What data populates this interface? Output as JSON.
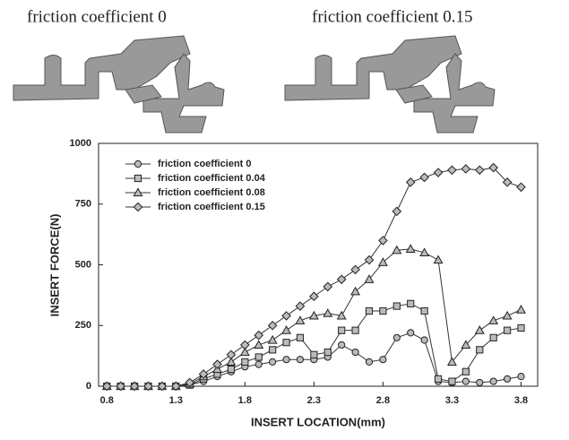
{
  "captions": [
    "friction  coefficient 0",
    "friction coefficient 0.15"
  ],
  "chart_data": {
    "type": "line",
    "x_label": "INSERT LOCATION(mm)",
    "y_label": "INSERT FORCE(N)",
    "x": [
      0.8,
      0.9,
      1.0,
      1.1,
      1.2,
      1.3,
      1.4,
      1.5,
      1.6,
      1.7,
      1.8,
      1.9,
      2.0,
      2.1,
      2.2,
      2.3,
      2.4,
      2.5,
      2.6,
      2.7,
      2.8,
      2.9,
      3.0,
      3.1,
      3.2,
      3.3,
      3.4,
      3.5,
      3.6,
      3.7,
      3.8
    ],
    "xlim": [
      0.74,
      3.92
    ],
    "xticks": [
      0.8,
      1.3,
      1.8,
      2.3,
      2.8,
      3.3,
      3.8
    ],
    "ylim": [
      0,
      1000
    ],
    "yticks": [
      0,
      250,
      500,
      750,
      1000
    ],
    "legend": "upper-left",
    "series": [
      {
        "name": "friction coefficient 0",
        "color": "#333333",
        "marker": "circle",
        "values": [
          0,
          0,
          0,
          0,
          0,
          0,
          5,
          20,
          40,
          60,
          80,
          90,
          100,
          110,
          110,
          110,
          120,
          170,
          140,
          100,
          110,
          200,
          220,
          190,
          20,
          15,
          20,
          15,
          20,
          30,
          40
        ]
      },
      {
        "name": "friction coefficient 0.04",
        "color": "#333333",
        "marker": "square",
        "values": [
          0,
          0,
          0,
          0,
          0,
          0,
          5,
          30,
          50,
          70,
          100,
          120,
          150,
          180,
          200,
          130,
          140,
          230,
          230,
          310,
          310,
          330,
          340,
          310,
          30,
          20,
          60,
          150,
          200,
          230,
          240
        ]
      },
      {
        "name": "friction coefficient 0.08",
        "color": "#333333",
        "marker": "triangle",
        "values": [
          0,
          0,
          0,
          0,
          0,
          0,
          10,
          40,
          70,
          100,
          140,
          170,
          190,
          230,
          270,
          290,
          300,
          290,
          390,
          440,
          510,
          560,
          565,
          550,
          520,
          100,
          170,
          230,
          270,
          290,
          315
        ]
      },
      {
        "name": "friction coefficient 0.15",
        "color": "#333333",
        "marker": "diamond",
        "values": [
          0,
          0,
          0,
          0,
          0,
          0,
          15,
          50,
          90,
          130,
          170,
          210,
          250,
          290,
          330,
          370,
          410,
          440,
          480,
          520,
          600,
          720,
          840,
          860,
          880,
          890,
          895,
          890,
          900,
          840,
          820
        ]
      }
    ]
  }
}
